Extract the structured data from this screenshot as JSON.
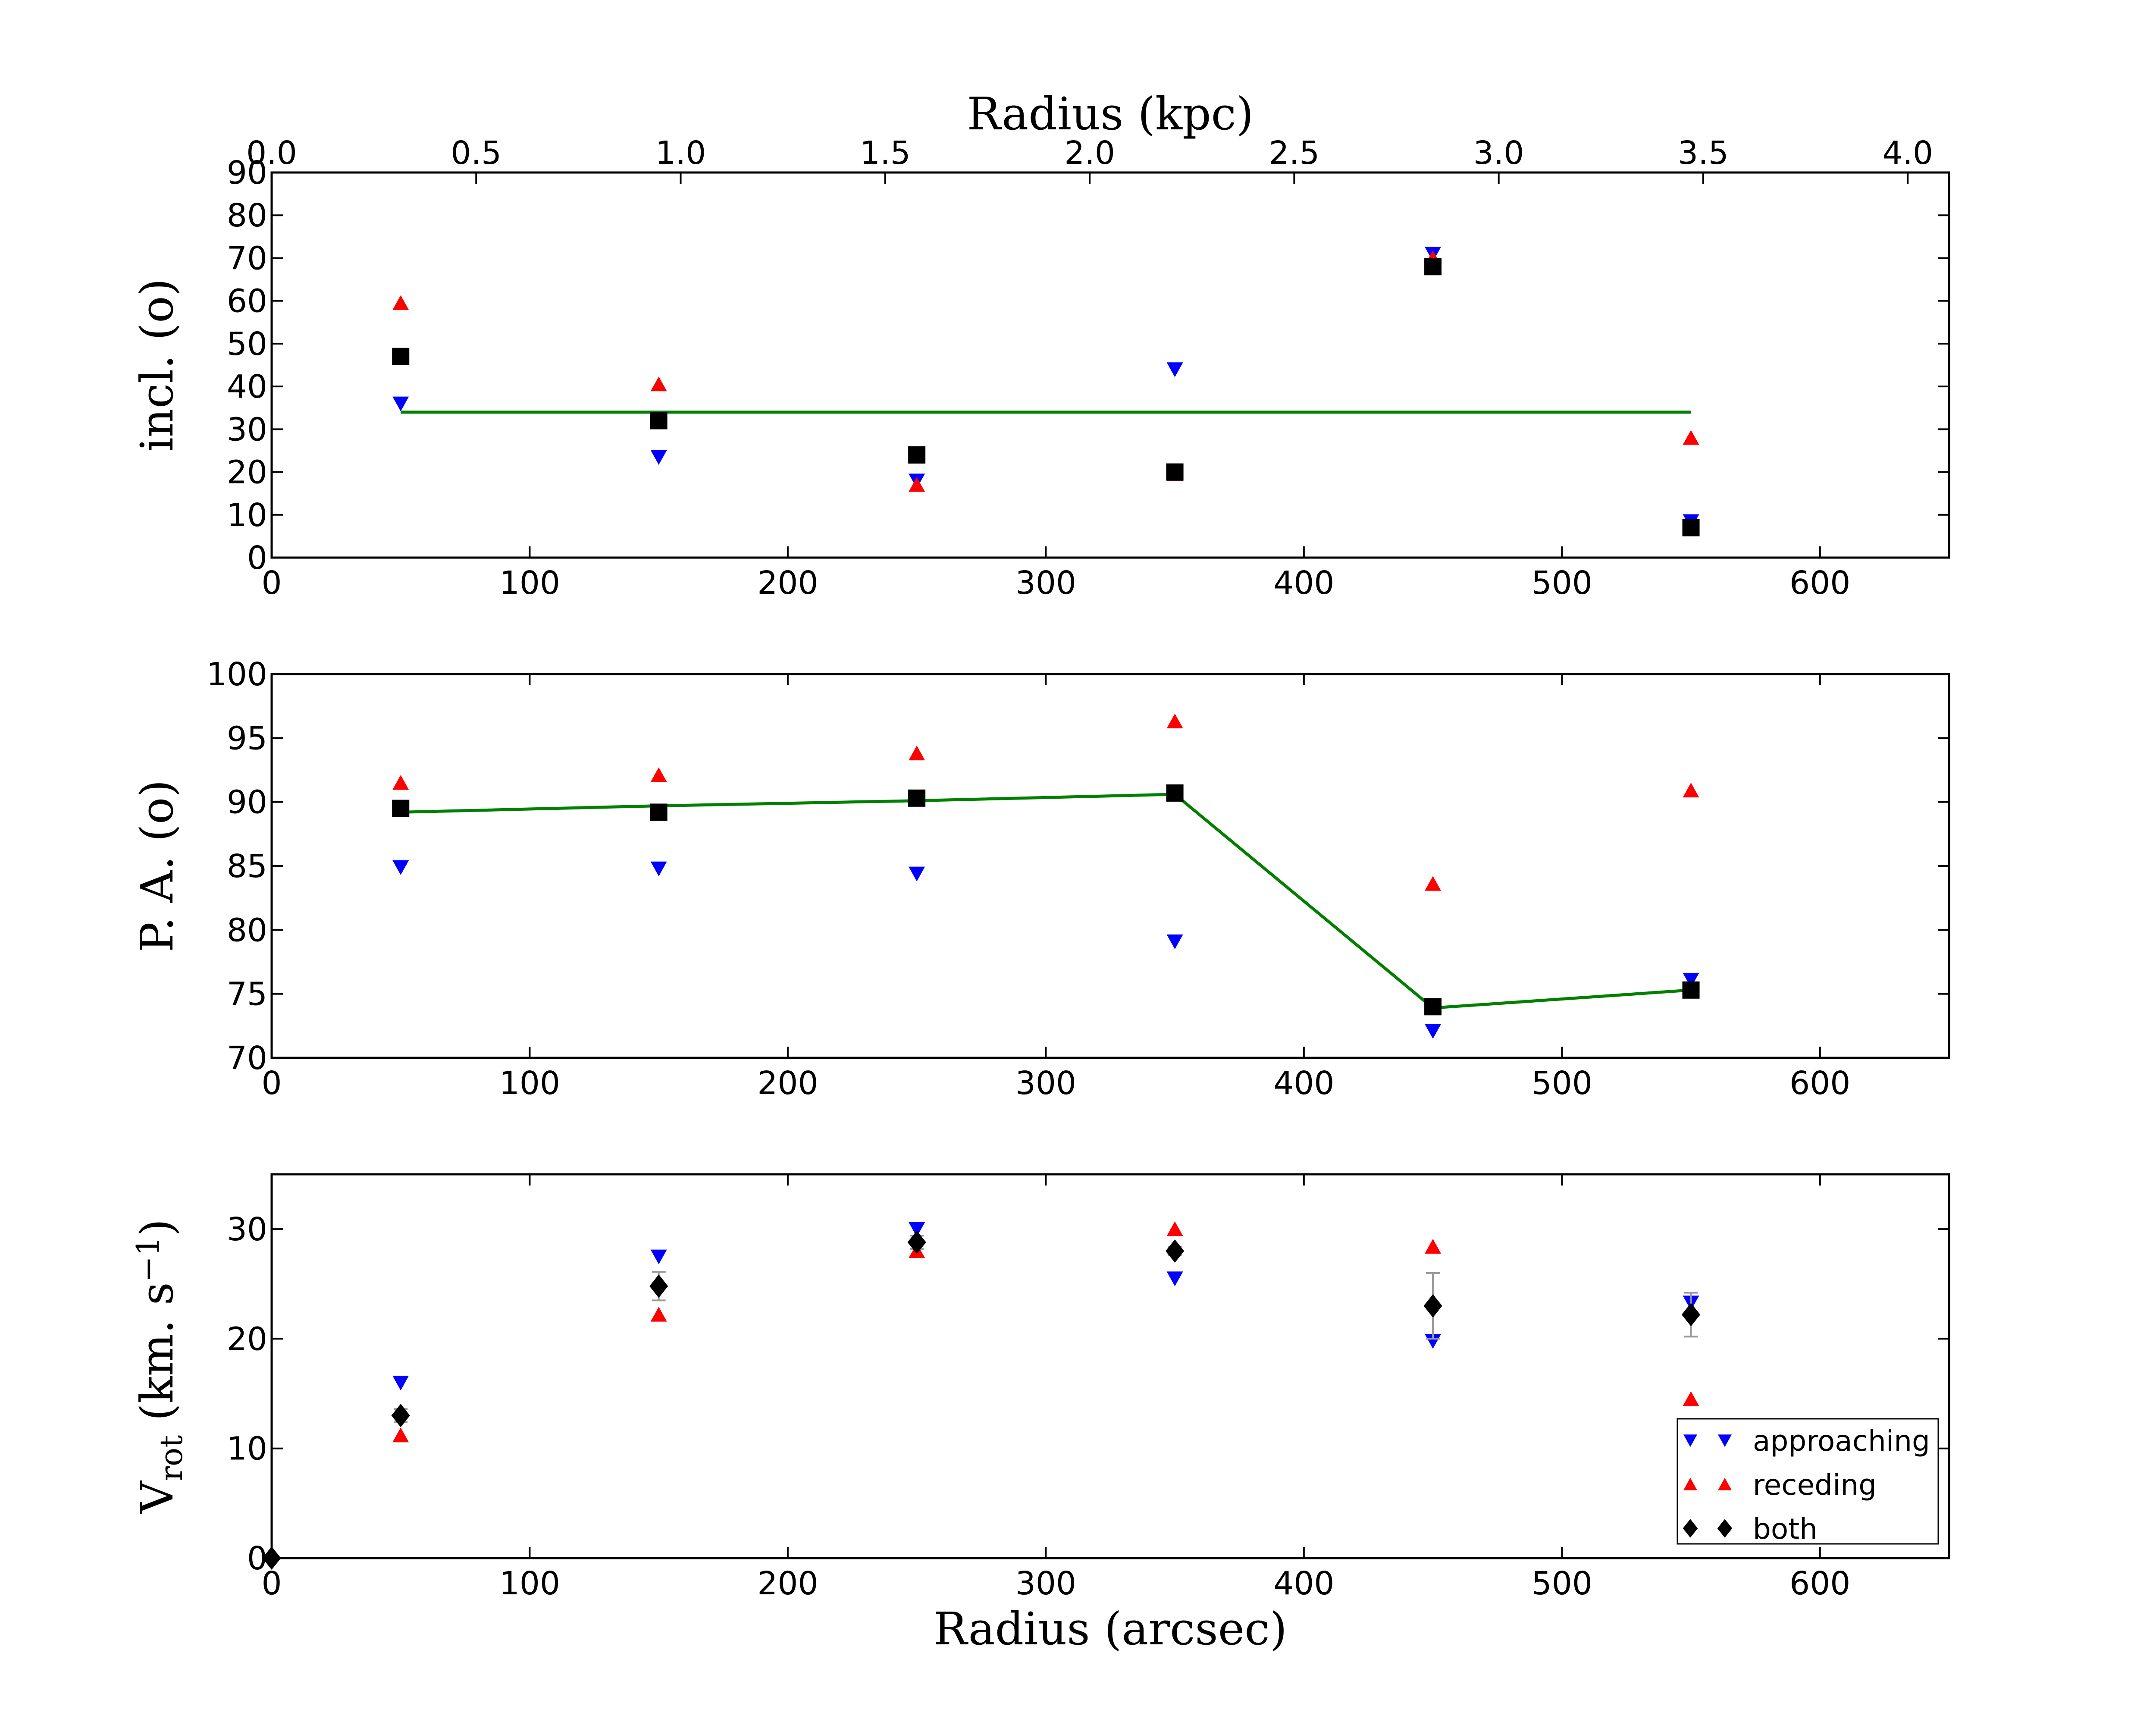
{
  "colors": {
    "approaching": "#0000ff",
    "receding": "#ff0000",
    "both": "#000000",
    "fit": "#008000",
    "errorbar": "#999999"
  },
  "legend": {
    "placement": "lower-right",
    "entries": [
      "approaching",
      "receding",
      "both"
    ]
  },
  "chart_data": [
    {
      "type": "scatter",
      "name": "inclination",
      "ylabel": "incl. (o)",
      "xlim": [
        0,
        650
      ],
      "ylim": [
        0,
        90
      ],
      "x_ticks": [
        0,
        100,
        200,
        300,
        400,
        500,
        600
      ],
      "y_ticks": [
        0,
        10,
        20,
        30,
        40,
        50,
        60,
        70,
        80,
        90
      ],
      "top_axis": {
        "label": "Radius (kpc)",
        "ticks": [
          0.0,
          0.5,
          1.0,
          1.5,
          2.0,
          2.5,
          3.0,
          3.5,
          4.0
        ],
        "tick_labels": [
          "0.0",
          "0.5",
          "1.0",
          "1.5",
          "2.0",
          "2.5",
          "3.0",
          "3.5",
          "4.0"
        ],
        "arcsec_per_kpc": 158.5
      },
      "x": [
        50,
        150,
        250,
        350,
        450,
        550
      ],
      "series": [
        {
          "key": "approaching",
          "values": [
            36,
            23.5,
            18,
            44,
            71,
            8.5
          ]
        },
        {
          "key": "receding",
          "values": [
            59.5,
            40.5,
            17,
            19.5,
            70,
            28
          ]
        },
        {
          "key": "both",
          "values": [
            47,
            32,
            24,
            20,
            68,
            7
          ]
        }
      ],
      "fit": {
        "x": [
          50,
          550
        ],
        "y": [
          34,
          34
        ]
      }
    },
    {
      "type": "scatter",
      "name": "position-angle",
      "ylabel": "P. A. (o)",
      "xlim": [
        0,
        650
      ],
      "ylim": [
        70,
        100
      ],
      "x_ticks": [
        0,
        100,
        200,
        300,
        400,
        500,
        600
      ],
      "y_ticks": [
        70,
        75,
        80,
        85,
        90,
        95,
        100
      ],
      "x": [
        50,
        150,
        250,
        350,
        450,
        550
      ],
      "series": [
        {
          "key": "approaching",
          "values": [
            84.9,
            84.8,
            84.4,
            79.1,
            72.1,
            76.1
          ]
        },
        {
          "key": "receding",
          "values": [
            91.5,
            92.1,
            93.8,
            96.3,
            83.6,
            90.9
          ]
        },
        {
          "key": "both",
          "values": [
            89.5,
            89.2,
            90.3,
            90.7,
            74.0,
            75.3
          ]
        }
      ],
      "fit": {
        "x": [
          50,
          150,
          250,
          350,
          450,
          550
        ],
        "y": [
          89.2,
          89.7,
          90.1,
          90.6,
          73.9,
          75.3
        ]
      }
    },
    {
      "type": "scatter",
      "name": "rotation-velocity",
      "ylabel": "Vrot (km. s−1)",
      "ylabel_main": "V",
      "ylabel_sub": "rot",
      "ylabel_rest": "(km. s",
      "ylabel_sup": "−1",
      "ylabel_close": ")",
      "xlabel": "Radius (arcsec)",
      "xlim": [
        0,
        650
      ],
      "ylim": [
        0,
        35
      ],
      "x_ticks": [
        0,
        100,
        200,
        300,
        400,
        500,
        600
      ],
      "y_ticks": [
        0,
        10,
        20,
        30
      ],
      "x": [
        50,
        150,
        250,
        350,
        450,
        550
      ],
      "series": [
        {
          "key": "approaching",
          "values": [
            16,
            27.5,
            30,
            25.5,
            19.8,
            23.3
          ]
        },
        {
          "key": "receding",
          "values": [
            11.2,
            22.2,
            28,
            30,
            28.4,
            14.5
          ]
        },
        {
          "key": "both",
          "x": [
            0,
            50,
            150,
            250,
            350,
            450,
            550
          ],
          "values": [
            0,
            13,
            24.8,
            28.8,
            28,
            23,
            22.2
          ],
          "errors": [
            0,
            0.6,
            1.3,
            0.6,
            0.4,
            3.0,
            2.0
          ]
        }
      ]
    }
  ]
}
